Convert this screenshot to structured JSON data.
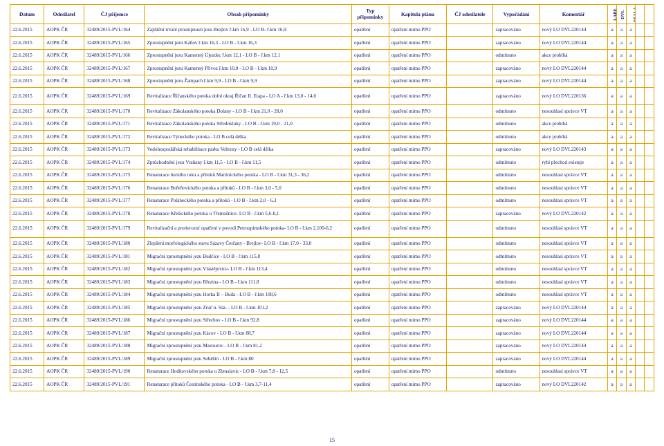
{
  "page_number": "15",
  "colors": {
    "border": "#e2a300",
    "text": "#151b5c",
    "background": "#ffffff"
  },
  "headers": {
    "datum": "Datum",
    "odesilatel": "Odesilatel",
    "cj_prijemce": "ČJ příjemce",
    "obsah": "Obsah připomínky",
    "typ": "Typ připomínky",
    "kapitola": "Kapitola plánu",
    "cj_odesilatele": "ČJ odesilatele",
    "vyporadani": "Vypořádání",
    "komentar": "Komentář",
    "labe": "LABE",
    "dvl": "DVL",
    "seala": "SEALA",
    "przprla": "PrzPRLA",
    "seaprla": "SEAPRLA"
  },
  "rows": [
    {
      "datum": "22.6.2015",
      "odes": "AOPK ČR",
      "cj": "32489/2015-PVL/164",
      "obsah": "Zajištění trvalé prostupnosti jezu Brejlov ř.km 16,9 - LO B- ř.km 16,9",
      "typ": "opatření",
      "kap": "opatření mimo PPO",
      "cjo": "",
      "vyp": "zapracováno",
      "kom": "nový LO DVL220144",
      "f": [
        "a",
        "a",
        "a",
        "",
        ""
      ],
      "tall": false
    },
    {
      "datum": "22.6.2015",
      "odes": "AOPK ČR",
      "cj": "32489/2015-PVL/165",
      "obsah": "Zprostupnění jezu Káňov ř.km 16,3 - LO B - ř.km 16,3",
      "typ": "opatření",
      "kap": "opatření mimo PPO",
      "cjo": "",
      "vyp": "zapracováno",
      "kom": "nový LO DVL220144",
      "f": [
        "a",
        "a",
        "a",
        "",
        ""
      ],
      "tall": false
    },
    {
      "datum": "22.6.2015",
      "odes": "AOPK ČR",
      "cj": "32489/2015-PVL/166",
      "obsah": "Zprostupnění jezu Kamenný Újezdec ř.km 12,1 - LO B - ř.km 12,1",
      "typ": "opatření",
      "kap": "opatření mimo PPO",
      "cjo": "",
      "vyp": "odmítnuto",
      "kom": "akce probíhá",
      "f": [
        "a",
        "a",
        "a",
        "",
        ""
      ],
      "tall": false
    },
    {
      "datum": "22.6.2015",
      "odes": "AOPK ČR",
      "cj": "32489/2015-PVL/167",
      "obsah": "Zprostupnění jezu Kamenný Přívoz ř.km 10,9 - LO B - ř.km 10,9",
      "typ": "opatření",
      "kap": "opatření mimo PPO",
      "cjo": "",
      "vyp": "zapracováno",
      "kom": "nový LO DVL220144",
      "f": [
        "a",
        "a",
        "a",
        "",
        ""
      ],
      "tall": false
    },
    {
      "datum": "22.6.2015",
      "odes": "AOPK ČR",
      "cj": "32489/2015-PVL/168",
      "obsah": "Zprostupnění jezu Žampach ř.km 9,9 - LO B - ř.km 9,9",
      "typ": "opatření",
      "kap": "opatření mimo PPO",
      "cjo": "",
      "vyp": "zapracováno",
      "kom": "nový LO DVL220144",
      "f": [
        "a",
        "a",
        "a",
        "",
        ""
      ],
      "tall": false
    },
    {
      "datum": "22.6.2015",
      "odes": "AOPK ČR",
      "cj": "32489/2015-PVL/169",
      "obsah": "Revitalizace Říčanského potoka dolní okraj Říčan II. Etapa - LO A - ř.km 13,0 - 14,0",
      "typ": "opatření",
      "kap": "opatření mimo PPO",
      "cjo": "",
      "vyp": "zapracováno",
      "kom": "nový LO DVL220136",
      "f": [
        "a",
        "a",
        "a",
        "",
        ""
      ],
      "tall": true
    },
    {
      "datum": "22.6.2015",
      "odes": "AOPK ČR",
      "cj": "32489/2015-PVL/170",
      "obsah": "Revitalizace Zákolanského potoka Dolany - LO B - ř.km 21,0 - 28,0",
      "typ": "opatření",
      "kap": "opatření mimo PPO",
      "cjo": "",
      "vyp": "odmítnuto",
      "kom": "nesouhlasí správce VT",
      "f": [
        "a",
        "a",
        "a",
        "",
        ""
      ],
      "tall": false
    },
    {
      "datum": "22.6.2015",
      "odes": "AOPK ČR",
      "cj": "32489/2015-PVL/171",
      "obsah": "Revitalizace Zákolanského potoka Středokluky - LO B - ř.km 19,0 - 21,0",
      "typ": "opatření",
      "kap": "opatření mimo PPO",
      "cjo": "",
      "vyp": "odmítnuto",
      "kom": "akce probíhá",
      "f": [
        "a",
        "a",
        "a",
        "",
        ""
      ],
      "tall": false
    },
    {
      "datum": "22.6.2015",
      "odes": "AOPK ČR",
      "cj": "32489/2015-PVL/172",
      "obsah": "Revitalizace Týneckého potoka - LO B celá délka",
      "typ": "opatření",
      "kap": "opatření mimo PPO",
      "cjo": "",
      "vyp": "odmítnuto",
      "kom": "akce probíhá",
      "f": [
        "a",
        "a",
        "a",
        "",
        ""
      ],
      "tall": false
    },
    {
      "datum": "22.6.2015",
      "odes": "AOPK ČR",
      "cj": "32489/2015-PVL/173",
      "obsah": "Vodohospodářská rehabilitace parku Veltrusy - LO B  celá délka",
      "typ": "opatření",
      "kap": "opatření mimo PPO",
      "cjo": "",
      "vyp": "zapracováno",
      "kom": "nový LO DVL220143",
      "f": [
        "a",
        "a",
        "a",
        "",
        ""
      ],
      "tall": false
    },
    {
      "datum": "22.6.2015",
      "odes": "AOPK ČR",
      "cj": "32489/2015-PVL/174",
      "obsah": "Zprůchodnění jezu Vraňany ř.km 11,5 - LO B - ř.km 11,5",
      "typ": "opatření",
      "kap": "opatření mimo PPO",
      "cjo": "",
      "vyp": "odmítnuto",
      "kom": "rybí přechod existuje",
      "f": [
        "a",
        "a",
        "a",
        "",
        ""
      ],
      "tall": false
    },
    {
      "datum": "22.6.2015",
      "odes": "AOPK ČR",
      "cj": "32489/2015-PVL/175",
      "obsah": "Renaturace horního toku a přítoků Martinického potoka - LO B - ř.km 31,3 - 36,2",
      "typ": "opatření",
      "kap": "opatření mimo PPO",
      "cjo": "",
      "vyp": "odmítnuto",
      "kom": "nesouhlasí správce VT",
      "f": [
        "a",
        "a",
        "a",
        "",
        ""
      ],
      "tall": false
    },
    {
      "datum": "22.6.2015",
      "odes": "AOPK ČR",
      "cj": "32489/2015-PVL/176",
      "obsah": "Renaturace Bořeňovického potoka a přítoků - LO B - ř.km 3,0 - 5,0",
      "typ": "opatření",
      "kap": "opatření mimo PPO",
      "cjo": "",
      "vyp": "odmítnuto",
      "kom": "nesouhlasí správce VT",
      "f": [
        "a",
        "a",
        "a",
        "",
        ""
      ],
      "tall": false
    },
    {
      "datum": "22.6.2015",
      "odes": "AOPK ČR",
      "cj": "32489/2015-PVL/177",
      "obsah": "Renaturace Poláneckého potoka a přítoků - LO B - ř.km 2,0 - 6,3",
      "typ": "opatření",
      "kap": "opatření mimo PPO",
      "cjo": "",
      "vyp": "odmítnuto",
      "kom": "nesouhlasí správce VT",
      "f": [
        "a",
        "a",
        "a",
        "",
        ""
      ],
      "tall": false
    },
    {
      "datum": "22.6.2015",
      "odes": "AOPK ČR",
      "cj": "32489/2015-PVL/178",
      "obsah": "Renaturace Křešického potoka u Třemošnice- LO B - ř.km 5,6-8,1",
      "typ": "opatření",
      "kap": "opatření mimo PPO",
      "cjo": "",
      "vyp": "zapracováno",
      "kom": "nový LO DVL220142",
      "f": [
        "a",
        "a",
        "a",
        "",
        ""
      ],
      "tall": false
    },
    {
      "datum": "22.6.2015",
      "odes": "AOPK ČR",
      "cj": "32489/2015-PVL/179",
      "obsah": "Revitalizační a protierozní opatření v povodí Petroupimského potoka- LO B - ř.km 2,100-6,2",
      "typ": "opatření",
      "kap": "opatření mimo PPO",
      "cjo": "",
      "vyp": "odmítnuto",
      "kom": "nesouhlasí správce VT",
      "f": [
        "a",
        "a",
        "a",
        "",
        ""
      ],
      "tall": true
    },
    {
      "datum": "22.6.2015",
      "odes": "AOPK ČR",
      "cj": "32489/2015-PVL/180",
      "obsah": "Zlepšení morfologického stavu Sázavy Čerčany - Brejlov- LO B - ř.km 17,0 - 33,0",
      "typ": "opatření",
      "kap": "opatření mimo PPO",
      "cjo": "",
      "vyp": "odmítnuto",
      "kom": "nesouhlasí správce VT",
      "f": [
        "a",
        "a",
        "a",
        "",
        ""
      ],
      "tall": false
    },
    {
      "datum": "22.6.2015",
      "odes": "AOPK ČR",
      "cj": "32489/2015-PVL/181",
      "obsah": "Migrační zprostupnění jezu Budčice - LO B - ř.km 115,8",
      "typ": "opatření",
      "kap": "opatření mimo PPO",
      "cjo": "",
      "vyp": "odmítnuto",
      "kom": "nesouhlasí správce VT",
      "f": [
        "a",
        "a",
        "a",
        "",
        ""
      ],
      "tall": false
    },
    {
      "datum": "22.6.2015",
      "odes": "AOPK ČR",
      "cj": "32489/2015-PVL/182",
      "obsah": "Migrační zprostupnění jezu Vlastějovice- LO B - ř.km 113,4",
      "typ": "opatření",
      "kap": "opatření mimo PPO",
      "cjo": "",
      "vyp": "odmítnuto",
      "kom": "nesouhlasí správce VT",
      "f": [
        "a",
        "a",
        "a",
        "",
        ""
      ],
      "tall": false
    },
    {
      "datum": "22.6.2015",
      "odes": "AOPK ČR",
      "cj": "32489/2015-PVL/183",
      "obsah": "Migrační zprostupnění jezu Březina - LO B - ř.km 111,8",
      "typ": "opatření",
      "kap": "opatření mimo PPO",
      "cjo": "",
      "vyp": "odmítnuto",
      "kom": "nesouhlasí správce VT",
      "f": [
        "a",
        "a",
        "a",
        "",
        ""
      ],
      "tall": false
    },
    {
      "datum": "22.6.2015",
      "odes": "AOPK ČR",
      "cj": "32489/2015-PVL/184",
      "obsah": "Migrační zprostupnění jezu Horka II – Buda - LO B - ř.km 108,6",
      "typ": "opatření",
      "kap": "opatření mimo PPO",
      "cjo": "",
      "vyp": "odmítnuto",
      "kom": "nesouhlasí správce VT",
      "f": [
        "a",
        "a",
        "a",
        "",
        ""
      ],
      "tall": false
    },
    {
      "datum": "22.6.2015",
      "odes": "AOPK ČR",
      "cj": "32489/2015-PVL/185",
      "obsah": "Migrační zprostupnění jezu Zruč n. Sáz. - LO B - ř.km 101,2",
      "typ": "opatření",
      "kap": "opatření mimo PPO",
      "cjo": "",
      "vyp": "zapracováno",
      "kom": "nový LO DVL220144",
      "f": [
        "a",
        "a",
        "a",
        "",
        ""
      ],
      "tall": false
    },
    {
      "datum": "22.6.2015",
      "odes": "AOPK ČR",
      "cj": "32489/2015-PVL/186",
      "obsah": "Migrační zprostupnění jezu Střechov - LO B - ř.km 92,8",
      "typ": "opatření",
      "kap": "opatření mimo PPO",
      "cjo": "",
      "vyp": "zapracováno",
      "kom": "nový LO DVL220144",
      "f": [
        "a",
        "a",
        "a",
        "",
        ""
      ],
      "tall": false
    },
    {
      "datum": "22.6.2015",
      "odes": "AOPK ČR",
      "cj": "32489/2015-PVL/187",
      "obsah": "Migrační zprostupnění jezu Kácov - LO B - ř.km 88,7",
      "typ": "opatření",
      "kap": "opatření mimo PPO",
      "cjo": "",
      "vyp": "zapracováno",
      "kom": "nový LO DVL220144",
      "f": [
        "a",
        "a",
        "a",
        "",
        ""
      ],
      "tall": false
    },
    {
      "datum": "22.6.2015",
      "odes": "AOPK ČR",
      "cj": "32489/2015-PVL/188",
      "obsah": "Migrační zprostupnění jezu Mazourov - LO B - ř.km 81,2",
      "typ": "opatření",
      "kap": "opatření mimo PPO",
      "cjo": "",
      "vyp": "zapracováno",
      "kom": "nový LO DVL220144",
      "f": [
        "a",
        "a",
        "a",
        "",
        ""
      ],
      "tall": false
    },
    {
      "datum": "22.6.2015",
      "odes": "AOPK ČR",
      "cj": "32489/2015-PVL/189",
      "obsah": "Migrační zprostupnění jezu Soběšín - LO B - ř.km 80",
      "typ": "opatření",
      "kap": "opatření mimo PPO",
      "cjo": "",
      "vyp": "zapracováno",
      "kom": "nový LO DVL220144",
      "f": [
        "a",
        "a",
        "a",
        "",
        ""
      ],
      "tall": false
    },
    {
      "datum": "22.6.2015",
      "odes": "AOPK ČR",
      "cj": "32489/2015-PVL/190",
      "obsah": "Renaturace Hodkovského potoka u Zbraslavic - LO B - ř.km 7,8 - 12,5",
      "typ": "opatření",
      "kap": "opatření mimo PPO",
      "cjo": "",
      "vyp": "odmítnuto",
      "kom": "nesouhlasí správce VT",
      "f": [
        "a",
        "a",
        "a",
        "",
        ""
      ],
      "tall": false
    },
    {
      "datum": "22.6.2015",
      "odes": "AOPK ČR",
      "cj": "32489/2015-PVL/191",
      "obsah": "Renaturace přítoků Čestínského potoka - LO B - ř.km 3,7-11,4",
      "typ": "opatření",
      "kap": "opatření mimo PPO",
      "cjo": "",
      "vyp": "zapracováno",
      "kom": "nový LO DVL220142",
      "f": [
        "a",
        "a",
        "a",
        "",
        ""
      ],
      "tall": false
    }
  ]
}
